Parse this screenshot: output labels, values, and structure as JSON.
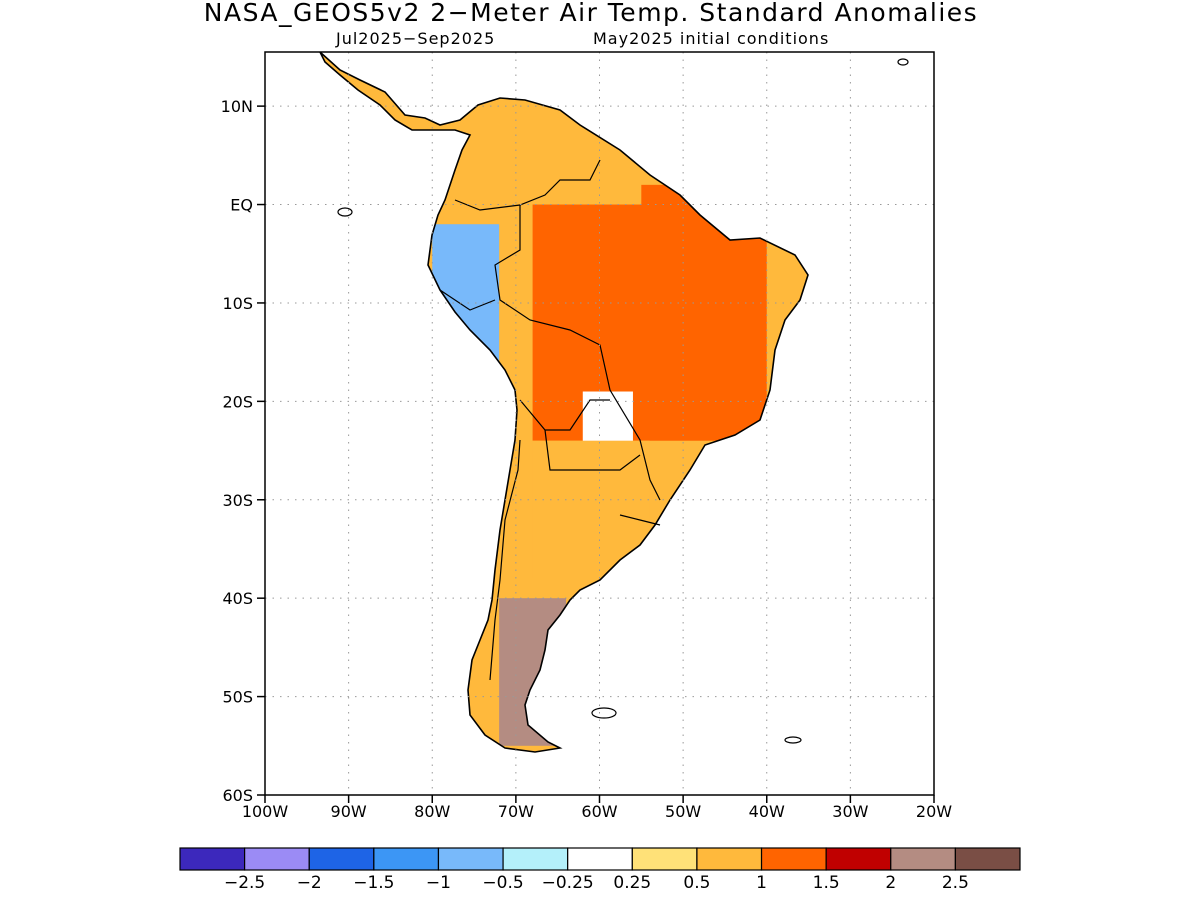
{
  "title": "NASA_GEOS5v2 2−Meter Air Temp. Standard Anomalies",
  "subtitle_left": "Jul2025−Sep2025",
  "subtitle_right": "May2025 initial conditions",
  "chart_data": {
    "type": "heatmap",
    "variable": "2-meter air temperature standard anomaly",
    "lat_ticks": [
      "10N",
      "EQ",
      "10S",
      "20S",
      "30S",
      "40S",
      "50S",
      "60S"
    ],
    "lat_values": [
      10,
      0,
      -10,
      -20,
      -30,
      -40,
      -50,
      -60
    ],
    "lon_ticks": [
      "100W",
      "90W",
      "80W",
      "70W",
      "60W",
      "50W",
      "40W",
      "30W",
      "20W"
    ],
    "lon_values": [
      -100,
      -90,
      -80,
      -70,
      -60,
      -50,
      -40,
      -30,
      -20
    ],
    "xlim": [
      -100,
      -20
    ],
    "ylim": [
      -60,
      15.5
    ],
    "grid": true,
    "colorbar": {
      "colors": [
        "#3c28bc",
        "#9b8bf5",
        "#1e64e6",
        "#3c96f5",
        "#78b9fa",
        "#b4f0fa",
        "#ffffff",
        "#ffe178",
        "#ffb93c",
        "#ff6400",
        "#c00000",
        "#b48c82",
        "#7a4e45"
      ],
      "labels": [
        "−2.5",
        "−2",
        "−1.5",
        "−1",
        "−0.5",
        "−0.25",
        "0.25",
        "0.5",
        "1",
        "1.5",
        "2",
        "2.5"
      ]
    },
    "regions": [
      {
        "lon": [
          -68,
          -40
        ],
        "lat": [
          -24,
          2
        ],
        "anomaly": 1.2
      },
      {
        "lon": [
          -73,
          -55
        ],
        "lat": [
          0,
          12
        ],
        "anomaly": 0.8
      },
      {
        "lon": [
          -68,
          -54
        ],
        "lat": [
          -38,
          -24
        ],
        "anomaly": 0.8
      },
      {
        "lon": [
          -72,
          -64
        ],
        "lat": [
          -55,
          -40
        ],
        "anomaly": 2.1
      },
      {
        "lon": [
          -80,
          -72
        ],
        "lat": [
          -18,
          -2
        ],
        "anomaly": -0.6
      },
      {
        "lon": [
          -62,
          -56
        ],
        "lat": [
          -24,
          -19
        ],
        "anomaly": 0.1
      }
    ]
  }
}
